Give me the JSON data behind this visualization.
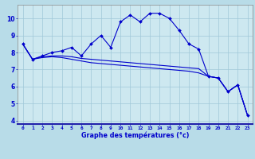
{
  "title": "Graphe des températures (°c)",
  "x_hours": [
    0,
    1,
    2,
    3,
    4,
    5,
    6,
    7,
    8,
    9,
    10,
    11,
    12,
    13,
    14,
    15,
    16,
    17,
    18,
    19,
    20,
    21,
    22,
    23
  ],
  "line1": [
    8.5,
    7.6,
    7.8,
    8.0,
    8.1,
    8.3,
    7.8,
    8.5,
    9.0,
    8.3,
    9.8,
    10.2,
    9.8,
    10.3,
    10.3,
    10.0,
    9.3,
    8.5,
    8.2,
    6.6,
    6.5,
    5.7,
    6.1,
    4.3
  ],
  "line2": [
    8.5,
    7.6,
    7.75,
    7.8,
    7.8,
    7.75,
    7.65,
    7.6,
    7.55,
    7.5,
    7.45,
    7.4,
    7.35,
    7.3,
    7.25,
    7.2,
    7.15,
    7.1,
    7.05,
    6.6,
    6.5,
    5.7,
    6.1,
    4.3
  ],
  "line3": [
    8.5,
    7.6,
    7.7,
    7.75,
    7.7,
    7.6,
    7.5,
    7.4,
    7.35,
    7.3,
    7.25,
    7.2,
    7.15,
    7.1,
    7.05,
    7.0,
    6.95,
    6.9,
    6.8,
    6.6,
    6.5,
    5.7,
    6.1,
    4.3
  ],
  "ylim": [
    3.8,
    10.8
  ],
  "yticks": [
    4,
    5,
    6,
    7,
    8,
    9,
    10
  ],
  "bg_color": "#cde8f0",
  "grid_color": "#a0c8d8",
  "line_color": "#0000cc",
  "marker_color": "#0000cc",
  "label_color": "#0000cc",
  "bottom_bar_color": "#2222aa",
  "axis_bg": "#b8dce8"
}
